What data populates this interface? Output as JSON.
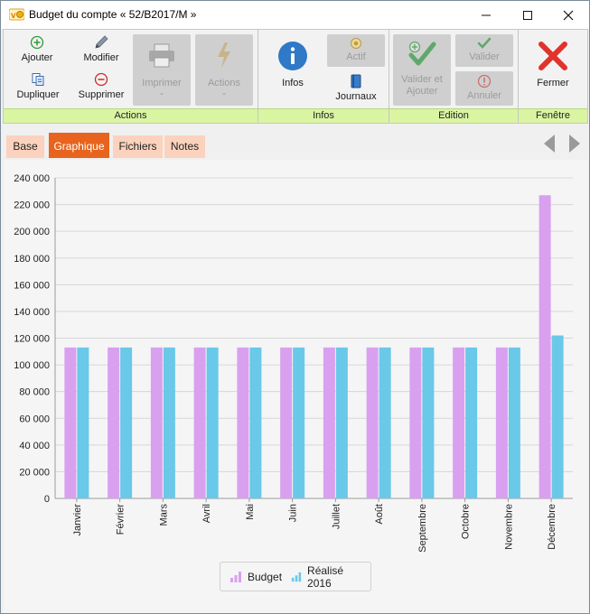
{
  "window": {
    "title": "Budget du compte « 52/B2017/M »",
    "minimize": "—",
    "maximize": "☐",
    "close": "✕"
  },
  "ribbon": {
    "groups": {
      "actions": "Actions",
      "infos": "Infos",
      "edition": "Edition",
      "fenetre": "Fenêtre"
    },
    "buttons": {
      "ajouter": "Ajouter",
      "modifier": "Modifier",
      "dupliquer": "Dupliquer",
      "supprimer": "Supprimer",
      "imprimer": "Imprimer",
      "actions": "Actions",
      "infos": "Infos",
      "actif": "Actif",
      "journaux": "Journaux",
      "valider_ajouter_1": "Valider et",
      "valider_ajouter_2": "Ajouter",
      "valider": "Valider",
      "annuler": "Annuler",
      "fermer": "Fermer"
    }
  },
  "tabs": [
    {
      "label": "Base"
    },
    {
      "label": "Graphique"
    },
    {
      "label": "Fichiers"
    },
    {
      "label": "Notes"
    }
  ],
  "colors": {
    "accent": "#e8641e",
    "budget": "#d9a0f0",
    "realise": "#6ac8e8",
    "group_band": "#d9f5a2"
  },
  "chart_data": {
    "type": "bar",
    "categories": [
      "Janvier",
      "Février",
      "Mars",
      "Avril",
      "Mai",
      "Juin",
      "Juillet",
      "Août",
      "Septembre",
      "Octobre",
      "Novembre",
      "Décembre"
    ],
    "series": [
      {
        "name": "Budget",
        "values": [
          113000,
          113000,
          113000,
          113000,
          113000,
          113000,
          113000,
          113000,
          113000,
          113000,
          113000,
          227000
        ]
      },
      {
        "name": "Réalisé 2016",
        "values": [
          113000,
          113000,
          113000,
          113000,
          113000,
          113000,
          113000,
          113000,
          113000,
          113000,
          113000,
          122000
        ]
      }
    ],
    "yticks": [
      "0",
      "20 000",
      "40 000",
      "60 000",
      "80 000",
      "100 000",
      "120 000",
      "140 000",
      "160 000",
      "180 000",
      "200 000",
      "220 000",
      "240 000"
    ],
    "ylim": [
      0,
      240000
    ],
    "grid": true,
    "legend": "bottom-center"
  }
}
